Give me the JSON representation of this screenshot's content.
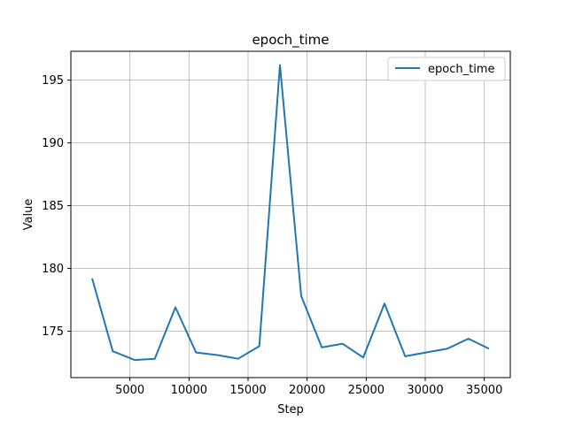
{
  "chart_data": {
    "type": "line",
    "title": "epoch_time",
    "xlabel": "Step",
    "ylabel": "Value",
    "xlim": [
      0,
      37200
    ],
    "ylim": [
      171.3,
      197.3
    ],
    "xticks": [
      5000,
      10000,
      15000,
      20000,
      25000,
      30000,
      35000
    ],
    "xtick_labels": [
      "5000",
      "10000",
      "15000",
      "20000",
      "25000",
      "30000",
      "35000"
    ],
    "yticks": [
      175,
      180,
      185,
      190,
      195
    ],
    "ytick_labels": [
      "175",
      "180",
      "185",
      "190",
      "195"
    ],
    "grid": true,
    "legend": "top-right",
    "series": [
      {
        "name": "epoch_time",
        "color": "#1f77b4",
        "x": [
          1800,
          3550,
          5400,
          7100,
          8850,
          10600,
          12400,
          14150,
          15950,
          17700,
          19500,
          21250,
          23000,
          24750,
          26550,
          28300,
          30050,
          31850,
          33650,
          35400
        ],
        "y": [
          179.2,
          173.4,
          172.7,
          172.8,
          176.9,
          173.3,
          173.1,
          172.8,
          173.8,
          196.2,
          177.8,
          173.7,
          174.0,
          172.9,
          177.2,
          173.0,
          173.3,
          173.6,
          174.4,
          173.6
        ]
      }
    ]
  }
}
